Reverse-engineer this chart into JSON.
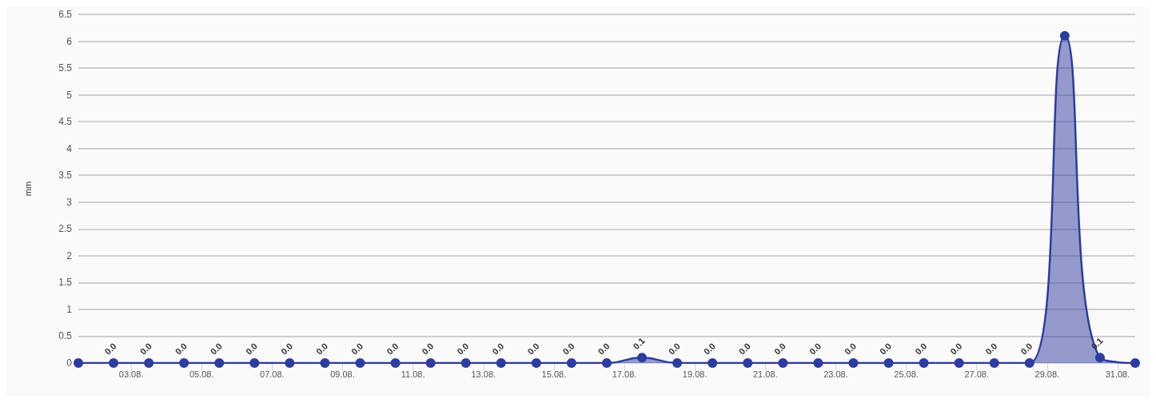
{
  "chart_data": {
    "type": "area",
    "ylabel": "mm",
    "x": [
      "--08-01T12:00",
      "--08-02T12:00",
      "--08-03T12:00",
      "--08-04T12:00",
      "--08-05T12:00",
      "--08-06T12:00",
      "--08-07T12:00",
      "--08-08T12:00",
      "--08-09T12:00",
      "--08-10T12:00",
      "--08-11T12:00",
      "--08-12T12:00",
      "--08-13T12:00",
      "--08-14T12:00",
      "--08-15T12:00",
      "--08-16T12:00",
      "--08-17T12:00",
      "--08-18T12:00",
      "--08-19T12:00",
      "--08-20T12:00",
      "--08-21T12:00",
      "--08-22T12:00",
      "--08-23T12:00",
      "--08-24T12:00",
      "--08-25T12:00",
      "--08-26T12:00",
      "--08-27T12:00",
      "--08-28T12:00",
      "--08-29T12:00",
      "--08-30T12:00",
      "--08-31T12:00"
    ],
    "series": [
      {
        "color": "#2d3c9e",
        "values": [
          0,
          0,
          0,
          0,
          0,
          0,
          0,
          0,
          0,
          0,
          0,
          0,
          0,
          0,
          0,
          0,
          0.1,
          0,
          0,
          0,
          0,
          0,
          0,
          0,
          0,
          0,
          0,
          0,
          6.1,
          0.1,
          0
        ],
        "value_labels": [
          null,
          "0.0",
          "0.0",
          "0.0",
          "0.0",
          "0.0",
          "0.0",
          "0.0",
          "0.0",
          "0.0",
          "0.0",
          "0.0",
          "0.0",
          "0.0",
          "0.0",
          "0.0",
          "0.1",
          "0.0",
          "0.0",
          "0.0",
          "0.0",
          "0.0",
          "0.0",
          "0.0",
          "0.0",
          "0.0",
          "0.0",
          "0.0",
          null,
          "0.1",
          null
        ]
      }
    ],
    "xlim": [
      "--08-01T12:00",
      "--08-31T12:00"
    ],
    "xticks": [
      {
        "value": "--08-03",
        "label": "03.08."
      },
      {
        "value": "--08-05",
        "label": "05.08."
      },
      {
        "value": "--08-07",
        "label": "07.08."
      },
      {
        "value": "--08-09",
        "label": "09.08."
      },
      {
        "value": "--08-11",
        "label": "11.08."
      },
      {
        "value": "--08-13",
        "label": "13.08."
      },
      {
        "value": "--08-15",
        "label": "15.08."
      },
      {
        "value": "--08-17",
        "label": "17.08."
      },
      {
        "value": "--08-19",
        "label": "19.08."
      },
      {
        "value": "--08-21",
        "label": "21.08."
      },
      {
        "value": "--08-23",
        "label": "23.08."
      },
      {
        "value": "--08-25",
        "label": "25.08."
      },
      {
        "value": "--08-27",
        "label": "27.08."
      },
      {
        "value": "--08-29",
        "label": "29.08."
      },
      {
        "value": "--08-31",
        "label": "31.08."
      }
    ],
    "ylim": [
      0,
      6.5
    ],
    "yticks": [
      0,
      0.5,
      1,
      1.5,
      2,
      2.5,
      3,
      3.5,
      4,
      4.5,
      5,
      5.5,
      6,
      6.5
    ],
    "grid": "y",
    "marker": "circle"
  }
}
